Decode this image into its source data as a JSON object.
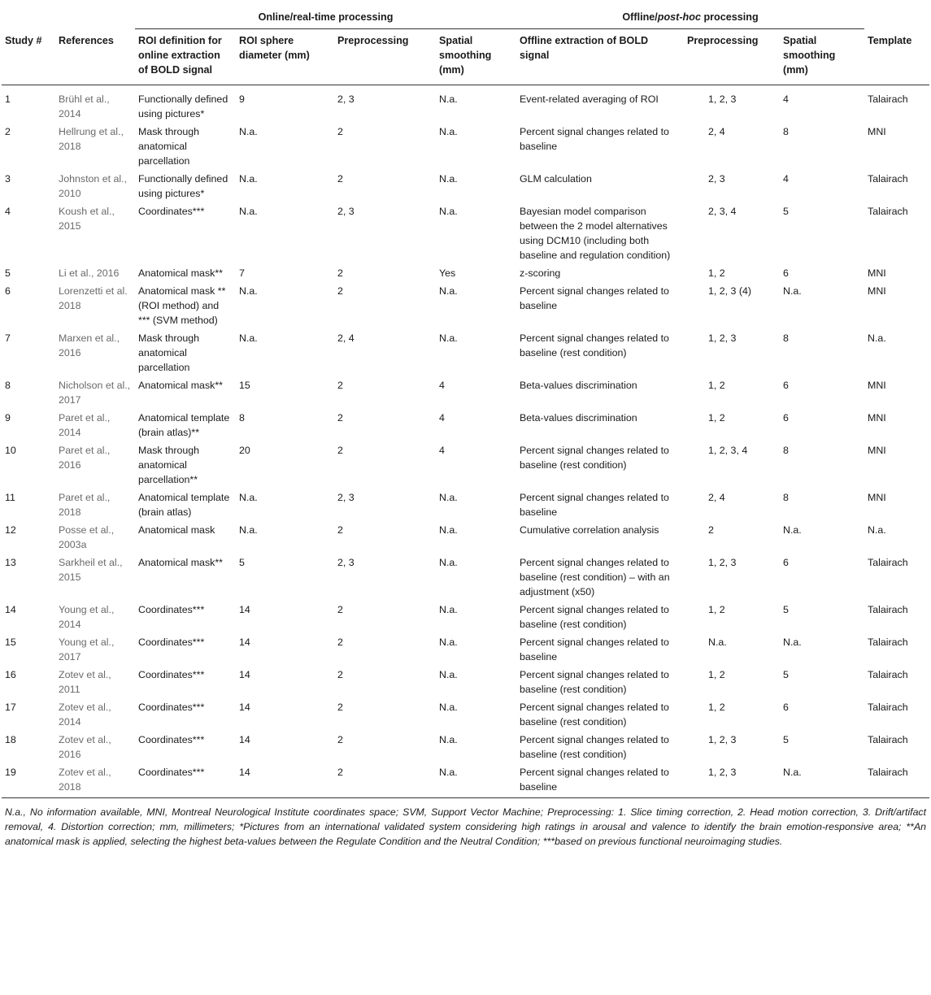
{
  "group_headers": {
    "online": "Online/real-time processing",
    "offline_prefix": "Offline/",
    "offline_italic": "post-hoc",
    "offline_suffix": " processing"
  },
  "columns": [
    "Study #",
    "References",
    "ROI definition for online extraction of BOLD signal",
    "ROI sphere diameter (mm)",
    "Preprocessing",
    "Spatial smoothing (mm)",
    "Offline extraction of BOLD signal",
    "Preprocessing",
    "Spatial smoothing (mm)",
    "Template"
  ],
  "rows": [
    [
      "1",
      "Brühl et al., 2014",
      "Functionally defined using pictures*",
      "9",
      "2, 3",
      "N.a.",
      "Event-related averaging of ROI",
      "1, 2, 3",
      "4",
      "Talairach"
    ],
    [
      "2",
      "Hellrung et al., 2018",
      "Mask through anatomical parcellation",
      "N.a.",
      "2",
      "N.a.",
      "Percent signal changes related to baseline",
      "2, 4",
      "8",
      "MNI"
    ],
    [
      "3",
      "Johnston et al., 2010",
      "Functionally defined using pictures*",
      "N.a.",
      "2",
      "N.a.",
      "GLM calculation",
      "2, 3",
      "4",
      "Talairach"
    ],
    [
      "4",
      "Koush et al., 2015",
      "Coordinates***",
      "N.a.",
      "2, 3",
      "N.a.",
      "Bayesian model comparison between the 2 model alternatives using DCM10 (including both baseline and regulation condition)",
      "2, 3, 4",
      "5",
      "Talairach"
    ],
    [
      "5",
      "Li et al., 2016",
      "Anatomical mask**",
      "7",
      "2",
      "Yes",
      "z-scoring",
      "1, 2",
      "6",
      "MNI"
    ],
    [
      "6",
      "Lorenzetti et al. 2018",
      "Anatomical mask ** (ROI method) and *** (SVM method)",
      "N.a.",
      "2",
      "N.a.",
      "Percent signal changes related to baseline",
      "1, 2, 3 (4)",
      "N.a.",
      "MNI"
    ],
    [
      "7",
      "Marxen et al., 2016",
      "Mask through anatomical parcellation",
      "N.a.",
      "2, 4",
      "N.a.",
      "Percent signal changes related to baseline (rest condition)",
      "1, 2, 3",
      "8",
      "N.a."
    ],
    [
      "8",
      "Nicholson et al., 2017",
      "Anatomical mask**",
      "15",
      "2",
      "4",
      "Beta-values discrimination",
      "1, 2",
      "6",
      "MNI"
    ],
    [
      "9",
      "Paret et al., 2014",
      "Anatomical template (brain atlas)**",
      "8",
      "2",
      "4",
      "Beta-values discrimination",
      "1, 2",
      "6",
      "MNI"
    ],
    [
      "10",
      "Paret et al., 2016",
      "Mask through anatomical parcellation**",
      "20",
      "2",
      "4",
      "Percent signal changes related to baseline (rest condition)",
      "1, 2, 3, 4",
      "8",
      "MNI"
    ],
    [
      "11",
      "Paret et al., 2018",
      "Anatomical template (brain atlas)",
      "N.a.",
      "2, 3",
      "N.a.",
      "Percent signal changes related to baseline",
      "2, 4",
      "8",
      "MNI"
    ],
    [
      "12",
      "Posse et al., 2003a",
      "Anatomical mask",
      "N.a.",
      "2",
      "N.a.",
      "Cumulative correlation analysis",
      "2",
      "N.a.",
      "N.a."
    ],
    [
      "13",
      "Sarkheil et al., 2015",
      "Anatomical mask**",
      "5",
      "2, 3",
      "N.a.",
      "Percent signal changes related to baseline (rest condition) – with an adjustment (x50)",
      "1, 2, 3",
      "6",
      "Talairach"
    ],
    [
      "14",
      "Young et al., 2014",
      "Coordinates***",
      "14",
      "2",
      "N.a.",
      "Percent signal changes related to baseline (rest condition)",
      "1, 2",
      "5",
      "Talairach"
    ],
    [
      "15",
      "Young et al., 2017",
      "Coordinates***",
      "14",
      "2",
      "N.a.",
      "Percent signal changes related to baseline",
      "N.a.",
      "N.a.",
      "Talairach"
    ],
    [
      "16",
      "Zotev et al., 2011",
      "Coordinates***",
      "14",
      "2",
      "N.a.",
      "Percent signal changes related to baseline (rest condition)",
      "1, 2",
      "5",
      "Talairach"
    ],
    [
      "17",
      "Zotev et al., 2014",
      "Coordinates***",
      "14",
      "2",
      "N.a.",
      "Percent signal changes related to baseline (rest condition)",
      "1, 2",
      "6",
      "Talairach"
    ],
    [
      "18",
      "Zotev et al., 2016",
      "Coordinates***",
      "14",
      "2",
      "N.a.",
      "Percent signal changes related to baseline (rest condition)",
      "1, 2, 3",
      "5",
      "Talairach"
    ],
    [
      "19",
      "Zotev et al., 2018",
      "Coordinates***",
      "14",
      "2",
      "N.a.",
      "Percent signal changes related to baseline",
      "1, 2, 3",
      "N.a.",
      "Talairach"
    ]
  ],
  "footnote": "N.a., No information available, MNI, Montreal Neurological Institute coordinates space; SVM, Support Vector Machine; Preprocessing: 1. Slice timing correction, 2. Head motion correction, 3. Drift/artifact removal, 4. Distortion correction; mm, millimeters; *Pictures from an international validated system considering high ratings in arousal and valence to identify the brain emotion-responsive area; **An anatomical mask is applied, selecting the highest beta-values between the Regulate Condition and the Neutral Condition; ***based on previous functional neuroimaging studies."
}
